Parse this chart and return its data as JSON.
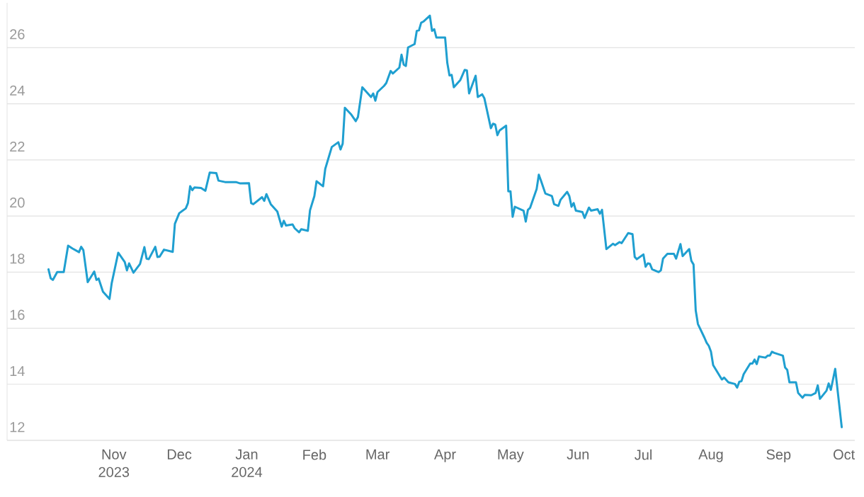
{
  "chart_data": {
    "type": "line",
    "x": [
      "2023-10-02",
      "2023-10-03",
      "2023-10-04",
      "2023-10-06",
      "2023-10-09",
      "2023-10-11",
      "2023-10-13",
      "2023-10-16",
      "2023-10-17",
      "2023-10-18",
      "2023-10-20",
      "2023-10-23",
      "2023-10-24",
      "2023-10-25",
      "2023-10-27",
      "2023-10-30",
      "2023-10-31",
      "2023-11-03",
      "2023-11-06",
      "2023-11-07",
      "2023-11-08",
      "2023-11-10",
      "2023-11-13",
      "2023-11-15",
      "2023-11-16",
      "2023-11-17",
      "2023-11-20",
      "2023-11-21",
      "2023-11-22",
      "2023-11-24",
      "2023-11-28",
      "2023-11-29",
      "2023-12-01",
      "2023-12-04",
      "2023-12-05",
      "2023-12-06",
      "2023-12-07",
      "2023-12-08",
      "2023-12-11",
      "2023-12-13",
      "2023-12-15",
      "2023-12-18",
      "2023-12-19",
      "2023-12-22",
      "2023-12-27",
      "2023-12-29",
      "2024-01-02",
      "2024-01-03",
      "2024-01-04",
      "2024-01-08",
      "2024-01-09",
      "2024-01-10",
      "2024-01-12",
      "2024-01-15",
      "2024-01-17",
      "2024-01-18",
      "2024-01-19",
      "2024-01-22",
      "2024-01-23",
      "2024-01-25",
      "2024-01-26",
      "2024-01-29",
      "2024-01-30",
      "2024-02-01",
      "2024-02-02",
      "2024-02-05",
      "2024-02-06",
      "2024-02-09",
      "2024-02-12",
      "2024-02-13",
      "2024-02-14",
      "2024-02-15",
      "2024-02-18",
      "2024-02-20",
      "2024-02-21",
      "2024-02-23",
      "2024-02-27",
      "2024-02-28",
      "2024-02-29",
      "2024-03-01",
      "2024-03-04",
      "2024-03-05",
      "2024-03-07",
      "2024-03-08",
      "2024-03-11",
      "2024-03-12",
      "2024-03-13",
      "2024-03-14",
      "2024-03-15",
      "2024-03-18",
      "2024-03-19",
      "2024-03-20",
      "2024-03-21",
      "2024-03-22",
      "2024-03-25",
      "2024-03-26",
      "2024-03-27",
      "2024-03-28",
      "2024-04-01",
      "2024-04-02",
      "2024-04-03",
      "2024-04-04",
      "2024-04-05",
      "2024-04-08",
      "2024-04-10",
      "2024-04-11",
      "2024-04-12",
      "2024-04-15",
      "2024-04-16",
      "2024-04-18",
      "2024-04-19",
      "2024-04-22",
      "2024-04-23",
      "2024-04-24",
      "2024-04-25",
      "2024-04-26",
      "2024-04-29",
      "2024-04-30",
      "2024-05-01",
      "2024-05-02",
      "2024-05-03",
      "2024-05-07",
      "2024-05-08",
      "2024-05-09",
      "2024-05-10",
      "2024-05-13",
      "2024-05-14",
      "2024-05-15",
      "2024-05-17",
      "2024-05-20",
      "2024-05-21",
      "2024-05-23",
      "2024-05-24",
      "2024-05-27",
      "2024-05-28",
      "2024-05-29",
      "2024-05-30",
      "2024-05-31",
      "2024-06-03",
      "2024-06-04",
      "2024-06-06",
      "2024-06-07",
      "2024-06-10",
      "2024-06-11",
      "2024-06-12",
      "2024-06-14",
      "2024-06-17",
      "2024-06-18",
      "2024-06-20",
      "2024-06-21",
      "2024-06-24",
      "2024-06-26",
      "2024-06-27",
      "2024-06-28",
      "2024-07-01",
      "2024-07-02",
      "2024-07-03",
      "2024-07-04",
      "2024-07-05",
      "2024-07-08",
      "2024-07-09",
      "2024-07-10",
      "2024-07-12",
      "2024-07-15",
      "2024-07-16",
      "2024-07-18",
      "2024-07-19",
      "2024-07-22",
      "2024-07-23",
      "2024-07-24",
      "2024-07-25",
      "2024-07-26",
      "2024-07-29",
      "2024-07-30",
      "2024-07-31",
      "2024-08-01",
      "2024-08-02",
      "2024-08-06",
      "2024-08-07",
      "2024-08-09",
      "2024-08-12",
      "2024-08-13",
      "2024-08-14",
      "2024-08-15",
      "2024-08-16",
      "2024-08-19",
      "2024-08-20",
      "2024-08-21",
      "2024-08-22",
      "2024-08-23",
      "2024-08-26",
      "2024-08-27",
      "2024-08-28",
      "2024-08-29",
      "2024-08-30",
      "2024-09-03",
      "2024-09-04",
      "2024-09-05",
      "2024-09-06",
      "2024-09-09",
      "2024-09-10",
      "2024-09-12",
      "2024-09-13",
      "2024-09-16",
      "2024-09-18",
      "2024-09-19",
      "2024-09-20",
      "2024-09-23",
      "2024-09-24",
      "2024-09-25",
      "2024-09-27",
      "2024-09-30"
    ],
    "series": [
      {
        "color": "#1f9fd0",
        "values": [
          18.1,
          17.78,
          17.72,
          18.0,
          18.0,
          18.94,
          18.84,
          18.71,
          18.9,
          18.78,
          17.64,
          18.02,
          17.72,
          17.77,
          17.3,
          17.04,
          17.6,
          18.69,
          18.36,
          18.06,
          18.31,
          17.98,
          18.29,
          18.89,
          18.48,
          18.46,
          18.9,
          18.54,
          18.55,
          18.8,
          18.72,
          19.72,
          20.1,
          20.27,
          20.46,
          21.06,
          20.92,
          21.02,
          21.0,
          20.9,
          21.55,
          21.53,
          21.26,
          21.21,
          21.21,
          21.16,
          21.17,
          20.46,
          20.42,
          20.67,
          20.54,
          20.78,
          20.42,
          20.16,
          19.62,
          19.83,
          19.66,
          19.7,
          19.56,
          19.42,
          19.53,
          19.47,
          20.2,
          20.71,
          21.24,
          21.06,
          21.68,
          22.46,
          22.63,
          22.37,
          22.58,
          23.86,
          23.61,
          23.38,
          23.53,
          24.59,
          24.24,
          24.37,
          24.11,
          24.42,
          24.64,
          24.74,
          25.17,
          25.08,
          25.29,
          25.75,
          25.4,
          25.35,
          26.01,
          26.13,
          26.6,
          26.62,
          26.89,
          26.93,
          27.14,
          26.6,
          26.66,
          26.36,
          26.36,
          25.46,
          25.01,
          25.03,
          24.59,
          24.85,
          25.21,
          25.19,
          24.37,
          25.0,
          24.24,
          24.34,
          24.2,
          23.13,
          23.29,
          23.26,
          22.88,
          23.05,
          23.22,
          20.88,
          20.88,
          19.97,
          20.33,
          20.19,
          19.8,
          20.22,
          20.29,
          20.96,
          21.47,
          21.26,
          20.8,
          20.71,
          20.42,
          20.36,
          20.58,
          20.86,
          20.71,
          20.33,
          20.46,
          20.19,
          20.14,
          19.93,
          20.3,
          20.19,
          20.24,
          20.08,
          20.22,
          18.82,
          19.01,
          18.96,
          19.07,
          19.03,
          19.39,
          19.35,
          18.54,
          18.46,
          18.63,
          18.19,
          18.31,
          18.29,
          18.1,
          18.0,
          18.06,
          18.48,
          18.65,
          18.65,
          18.48,
          19.0,
          18.57,
          18.82,
          18.4,
          18.27,
          16.63,
          16.15,
          15.66,
          15.48,
          15.37,
          15.16,
          14.68,
          14.17,
          14.24,
          14.07,
          14.01,
          13.88,
          14.09,
          14.11,
          14.36,
          14.74,
          14.74,
          14.88,
          14.72,
          14.99,
          14.95,
          15.02,
          15.02,
          15.16,
          15.12,
          15.02,
          14.6,
          14.51,
          14.07,
          14.07,
          13.69,
          13.52,
          13.62,
          13.61,
          13.69,
          13.96,
          13.48,
          13.77,
          14.03,
          13.8,
          14.55,
          12.47
        ]
      }
    ],
    "xlim": [
      "2023-09-13",
      "2024-10-06"
    ],
    "xticks": [
      {
        "value": "2023-11-01",
        "label": "Nov 2023"
      },
      {
        "value": "2023-12-01",
        "label": "Dec"
      },
      {
        "value": "2024-01-01",
        "label": "Jan 2024"
      },
      {
        "value": "2024-02-01",
        "label": "Feb"
      },
      {
        "value": "2024-03-01",
        "label": "Mar"
      },
      {
        "value": "2024-04-01",
        "label": "Apr"
      },
      {
        "value": "2024-05-01",
        "label": "May"
      },
      {
        "value": "2024-06-01",
        "label": "Jun"
      },
      {
        "value": "2024-07-01",
        "label": "Jul"
      },
      {
        "value": "2024-08-01",
        "label": "Aug"
      },
      {
        "value": "2024-09-01",
        "label": "Sep"
      },
      {
        "value": "2024-10-01",
        "label": "Oct"
      }
    ],
    "ylim": [
      12,
      27.6
    ],
    "yticks": [
      12,
      14,
      16,
      18,
      20,
      22,
      24,
      26
    ],
    "grid": "y",
    "line_style": "solid"
  }
}
